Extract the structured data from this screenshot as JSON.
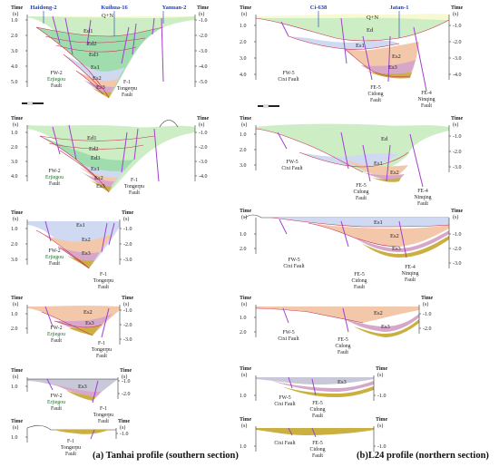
{
  "figure": {
    "caption_left": "(a) Tanhai profile (southern section)",
    "caption_right": "(b)L24 profile (northern section)",
    "time_label": "Time",
    "unit_label": "(s)",
    "scale_label": "0  2  3km"
  },
  "wells_left": [
    "Haidong-2",
    "Kuihua-16",
    "Yanuan-2"
  ],
  "wells_right": [
    "Ci-638",
    "Jatan-1"
  ],
  "units": {
    "qn": "Q+N",
    "ed": "Ed",
    "ed1": "Ed1",
    "ed2": "Ed2",
    "ed3": "Ed3",
    "es1": "Es1",
    "es2": "Es2",
    "es3": "Es3",
    "es4": "Es4"
  },
  "faults_left": {
    "fw2_code": "FW-2",
    "fw2_name": "Erjiegou",
    "f1_code": "F-1",
    "f1_name": "Tongerpu",
    "fault_word": "Fault"
  },
  "faults_right": {
    "fw5": "FW-5",
    "fw5_name": "Cixi Fault",
    "fe5": "FE-5",
    "fe5_name": "Cidong",
    "fe4": "FE-4",
    "fe4_name": "Ninqing",
    "fault_word": "Fault"
  },
  "left_panels": [
    {
      "ticks_left": [
        "1.0",
        "2.0",
        "3.0",
        "4.0",
        "5.0"
      ],
      "ticks_right": [
        "1.0",
        "2.0",
        "3.0",
        "4.0",
        "5.0"
      ]
    },
    {
      "ticks_left": [
        "1.0",
        "2.0",
        "3.0",
        "4.0"
      ],
      "ticks_right": [
        "1.0",
        "2.0",
        "3.0",
        "4.0"
      ]
    },
    {
      "ticks_left": [
        "1.0",
        "2.0",
        "3.0"
      ],
      "ticks_right": [
        "1.0",
        "2.0",
        "3.0"
      ]
    },
    {
      "ticks_left": [
        "1.0",
        "2.0"
      ],
      "ticks_right": [
        "1.0",
        "2.0",
        "3.0"
      ]
    },
    {
      "ticks_left": [
        "1.0"
      ],
      "ticks_right": [
        "1.0",
        "2.0"
      ]
    },
    {
      "ticks_left": [
        "1.0"
      ],
      "ticks_right": [
        "1.0"
      ]
    }
  ],
  "right_panels": [
    {
      "ticks_left": [
        "1.0",
        "2.0",
        "3.0",
        "4.0"
      ],
      "ticks_right": [
        "1.0",
        "2.0",
        "3.0",
        "4.0"
      ]
    },
    {
      "ticks_left": [
        "1.0",
        "2.0",
        "3.0"
      ],
      "ticks_right": [
        "1.0",
        "2.0",
        "3.0"
      ]
    },
    {
      "ticks_left": [
        "1.0",
        "2.0"
      ],
      "ticks_right": [
        "1.0",
        "2.0",
        "3.0"
      ]
    },
    {
      "ticks_left": [
        "1.0",
        "2.0"
      ],
      "ticks_right": [
        "1.0",
        "2.0"
      ]
    },
    {
      "ticks_left": [
        "1.0"
      ],
      "ticks_right": [
        "1.0"
      ]
    },
    {
      "ticks_left": [
        "1.0"
      ],
      "ticks_right": [
        "1.0"
      ]
    }
  ],
  "colors": {
    "qn": "#f7f9d0",
    "ed": "#cdeec4",
    "ed3": "#9fdcae",
    "es1": "#cfd9f2",
    "es2": "#f3c8aa",
    "es3": "#d6a7c9",
    "es4": "#c9b040",
    "fault": "#a040d0",
    "layer_line": "#d03050",
    "axis": "#333333",
    "well": "#3050c0"
  }
}
